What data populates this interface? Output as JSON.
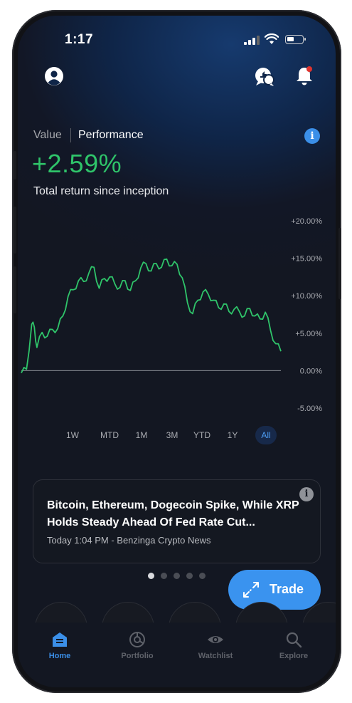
{
  "status_bar": {
    "time": "1:17"
  },
  "header": {
    "profile_icon": "account-circle-icon",
    "chat_icon": "chat-bubbles-icon",
    "bell_icon": "bell-icon"
  },
  "tabs": {
    "value_label": "Value",
    "performance_label": "Performance",
    "active": "Performance"
  },
  "performance": {
    "value": "+2.59%",
    "label": "Total return since inception",
    "color": "#2fc46a"
  },
  "chart_data": {
    "type": "line",
    "y_ticks": [
      "+20.00%",
      "+15.00%",
      "+10.00%",
      "+5.00%",
      "0.00%",
      "-5.00%"
    ],
    "ylim": [
      -5,
      20
    ],
    "grid": false,
    "baseline": 0,
    "series": [
      {
        "color": "#2fc46a",
        "x": [
          0,
          2,
          4,
          5,
          6,
          8,
          10,
          12,
          14,
          16,
          18,
          20,
          22,
          24,
          26,
          28,
          30,
          32,
          34,
          36,
          38,
          40,
          42,
          44,
          46,
          48,
          50,
          52,
          54,
          56,
          58,
          60,
          62,
          64,
          66,
          68,
          70,
          72,
          74,
          76,
          78,
          80,
          82,
          84,
          86,
          88,
          90,
          92,
          94,
          96,
          98,
          100
        ],
        "values": [
          -0.3,
          0.2,
          6.2,
          5.8,
          3.1,
          5.1,
          4.6,
          5.5,
          5.6,
          7.3,
          9.9,
          10.8,
          12.0,
          11.9,
          13.0,
          13.8,
          11.0,
          12.3,
          12.5,
          11.6,
          11.1,
          12.0,
          10.7,
          12.0,
          13.7,
          14.3,
          13.3,
          14.3,
          13.8,
          14.9,
          14.0,
          14.2,
          12.4,
          9.1,
          7.6,
          9.4,
          10.5,
          10.2,
          9.4,
          8.4,
          8.9,
          7.9,
          8.2,
          7.9,
          7.3,
          8.3,
          7.3,
          6.9,
          7.8,
          5.4,
          3.6,
          2.59
        ]
      }
    ]
  },
  "ranges": {
    "items": [
      "1W",
      "MTD",
      "1M",
      "3M",
      "YTD",
      "1Y",
      "All"
    ],
    "active": "All"
  },
  "news": {
    "title": "Bitcoin, Ethereum, Dogecoin Spike, While XRP Holds Steady Ahead Of Fed Rate Cut...",
    "meta": "Today 1:04 PM - Benzinga Crypto News",
    "info_icon": "info-icon"
  },
  "carousel": {
    "count": 5,
    "active_index": 0
  },
  "trade_button": {
    "label": "Trade",
    "icon": "arrows-diagonal-icon",
    "color": "#3a93ef"
  },
  "nav": {
    "items": [
      {
        "label": "Home",
        "icon": "home-icon"
      },
      {
        "label": "Portfolio",
        "icon": "portfolio-icon"
      },
      {
        "label": "Watchlist",
        "icon": "eye-icon"
      },
      {
        "label": "Explore",
        "icon": "search-icon"
      }
    ],
    "active": "Home",
    "active_color": "#3b8fe8"
  }
}
